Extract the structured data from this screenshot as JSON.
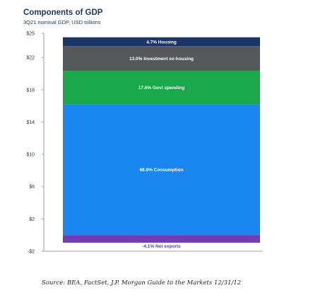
{
  "title": "Components of GDP",
  "subtitle": "3Q21 nominal GDP, USD trillions",
  "source": "Source:  BEA, FactSet, J.P. Morgan Guide to the Markets 12/31/12",
  "chart_data": {
    "type": "bar",
    "stacked": true,
    "ylim": [
      -2,
      25
    ],
    "yticks": [
      -2,
      2,
      6,
      10,
      14,
      18,
      22,
      25
    ],
    "ytick_labels": [
      "-$2",
      "$2",
      "$6",
      "$10",
      "$14",
      "$18",
      "$22",
      "$25"
    ],
    "grid": false,
    "segments": [
      {
        "label": "68.8% Consumption",
        "value": 16.2,
        "color": "#1a86f0"
      },
      {
        "label": "17.6% Govt spending",
        "value": 4.15,
        "color": "#1ba84a"
      },
      {
        "label": "13.0% Investment ex-housing",
        "value": 3.05,
        "color": "#56595c"
      },
      {
        "label": "4.7% Housing",
        "value": 1.1,
        "color": "#1a3566"
      },
      {
        "label": "-4.1% Net exports",
        "value": -0.95,
        "color": "#6f3db8"
      }
    ]
  }
}
